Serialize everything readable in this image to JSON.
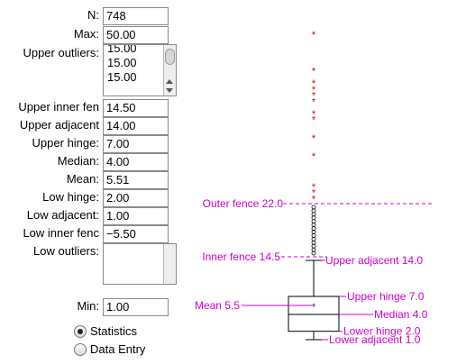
{
  "stats": {
    "n_label": "N:",
    "n_value": "748",
    "max_label": "Max:",
    "max_value": "50.00",
    "upper_outliers_label": "Upper outliers:",
    "upper_outliers": [
      "15.00",
      "15.00",
      "15.00"
    ],
    "upper_inner_fence_label": "Upper inner fen",
    "upper_inner_fence_value": "14.50",
    "upper_adjacent_label": "Upper adjacent",
    "upper_adjacent_value": "14.00",
    "upper_hinge_label": "Upper hinge:",
    "upper_hinge_value": "7.00",
    "median_label": "Median:",
    "median_value": "4.00",
    "mean_label": "Mean:",
    "mean_value": "5.51",
    "low_hinge_label": "Low hinge:",
    "low_hinge_value": "2.00",
    "low_adjacent_label": "Low adjacent:",
    "low_adjacent_value": "1.00",
    "low_inner_fence_label": "Low inner fenc",
    "low_inner_fence_value": "−5.50",
    "low_outliers_label": "Low outliers:",
    "min_label": "Min:",
    "min_value": "1.00"
  },
  "mode": {
    "options": [
      "Statistics",
      "Data Entry"
    ],
    "selected": "Statistics"
  },
  "colors": {
    "annotation": "#cc00cc",
    "outlier": "#cc0000",
    "box": "#000000"
  },
  "chart_data": {
    "type": "box",
    "min": 1.0,
    "max": 50.0,
    "low_adjacent": 1.0,
    "low_hinge": 2.0,
    "median": 4.0,
    "mean": 5.5,
    "upper_hinge": 7.0,
    "upper_adjacent": 14.0,
    "inner_fence": 14.5,
    "outer_fence": 22.0,
    "annotations": {
      "outer_fence": "Outer fence 22.0",
      "inner_fence": "Inner fence 14.5",
      "upper_adjacent": "Upper adjacent 14.0",
      "upper_hinge": "Upper hinge 7.0",
      "mean": "Mean 5.5",
      "median": "Median 4.0",
      "lower_hinge": "Lower hinge 2.0",
      "lower_adjacent": "Lower adjacent 1.0"
    },
    "far_outliers": [
      23,
      24,
      25,
      30,
      33,
      36,
      37,
      39,
      40,
      41,
      42,
      44,
      50
    ],
    "near_outliers": [
      15,
      15.5,
      16,
      16.5,
      17,
      17.5,
      18,
      18.5,
      19,
      19.5,
      20,
      20.5,
      21,
      21.5
    ]
  }
}
